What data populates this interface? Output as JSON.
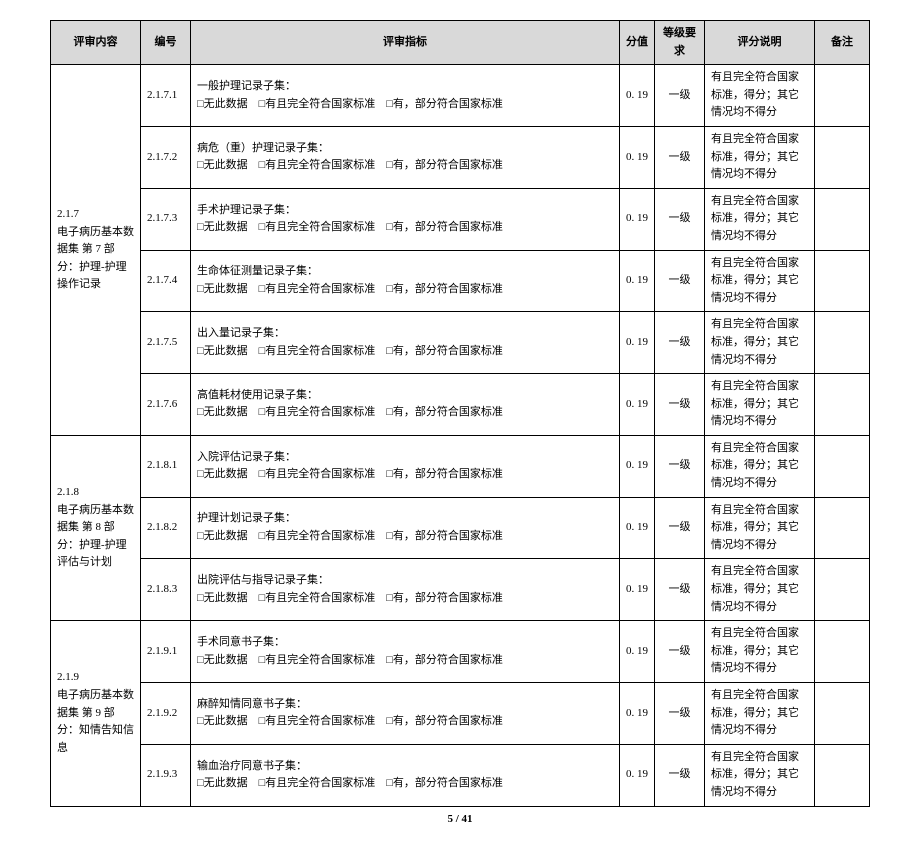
{
  "headers": {
    "content": "评审内容",
    "num": "编号",
    "indicator": "评审指标",
    "score": "分值",
    "level": "等级要求",
    "desc": "评分说明",
    "remark": "备注"
  },
  "checkbox_labels": {
    "no_data": "无此数据",
    "full": "有且完全符合国家标准",
    "partial": "有，部分符合国家标准"
  },
  "groups": [
    {
      "content_label": "2.1.7\n电子病历基本数据集 第 7 部分：护理-护理操作记录",
      "rows": [
        {
          "num": "2.1.7.1",
          "title": "一般护理记录子集：",
          "score": "0. 19",
          "level": "一级",
          "desc": "有且完全符合国家标准，得分；其它情况均不得分"
        },
        {
          "num": "2.1.7.2",
          "title": "病危（重）护理记录子集：",
          "score": "0. 19",
          "level": "一级",
          "desc": "有且完全符合国家标准，得分；其它情况均不得分"
        },
        {
          "num": "2.1.7.3",
          "title": "手术护理记录子集：",
          "score": "0. 19",
          "level": "一级",
          "desc": "有且完全符合国家标准，得分；其它情况均不得分"
        },
        {
          "num": "2.1.7.4",
          "title": "生命体征测量记录子集：",
          "score": "0. 19",
          "level": "一级",
          "desc": "有且完全符合国家标准，得分；其它情况均不得分"
        },
        {
          "num": "2.1.7.5",
          "title": "出入量记录子集：",
          "score": "0. 19",
          "level": "一级",
          "desc": "有且完全符合国家标准，得分；其它情况均不得分"
        },
        {
          "num": "2.1.7.6",
          "title": "高值耗材使用记录子集：",
          "score": "0. 19",
          "level": "一级",
          "desc": "有且完全符合国家标准，得分；其它情况均不得分"
        }
      ]
    },
    {
      "content_label": "2.1.8\n电子病历基本数据集 第 8 部分：护理-护理评估与计划",
      "rows": [
        {
          "num": "2.1.8.1",
          "title": "入院评估记录子集：",
          "score": "0. 19",
          "level": "一级",
          "desc": "有且完全符合国家标准，得分；其它情况均不得分"
        },
        {
          "num": "2.1.8.2",
          "title": "护理计划记录子集：",
          "score": "0. 19",
          "level": "一级",
          "desc": "有且完全符合国家标准，得分；其它情况均不得分"
        },
        {
          "num": "2.1.8.3",
          "title": "出院评估与指导记录子集：",
          "score": "0. 19",
          "level": "一级",
          "desc": "有且完全符合国家标准，得分；其它情况均不得分"
        }
      ]
    },
    {
      "content_label": "2.1.9\n电子病历基本数据集 第 9 部分：知情告知信息",
      "rows": [
        {
          "num": "2.1.9.1",
          "title": "手术同意书子集：",
          "score": "0. 19",
          "level": "一级",
          "desc": "有且完全符合国家标准，得分；其它情况均不得分"
        },
        {
          "num": "2.1.9.2",
          "title": "麻醉知情同意书子集：",
          "score": "0. 19",
          "level": "一级",
          "desc": "有且完全符合国家标准，得分；其它情况均不得分"
        },
        {
          "num": "2.1.9.3",
          "title": "输血治疗同意书子集：",
          "score": "0. 19",
          "level": "一级",
          "desc": "有且完全符合国家标准，得分；其它情况均不得分"
        }
      ]
    }
  ],
  "footer": "5 / 41"
}
